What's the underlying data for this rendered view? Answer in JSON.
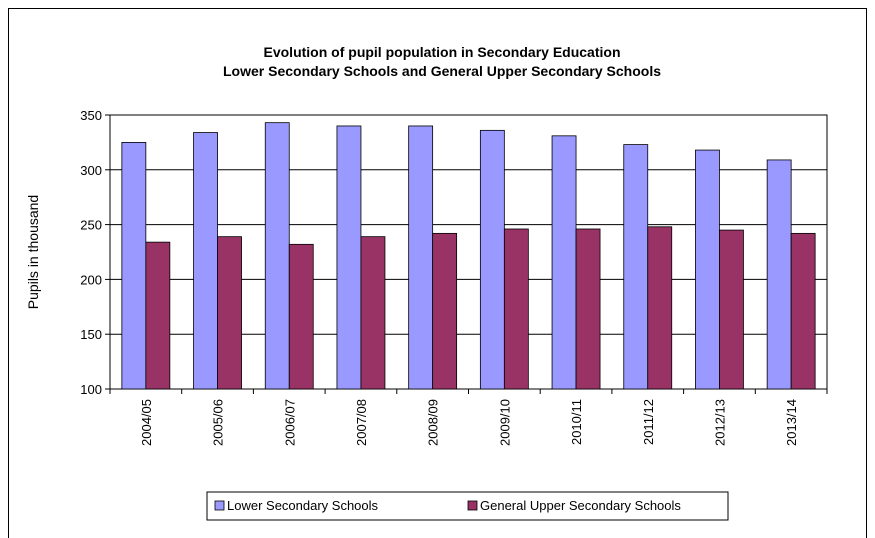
{
  "chart_data": {
    "type": "bar",
    "title_lines": [
      "Evolution of pupil population in Secondary Education",
      "Lower Secondary Schools and General Upper Secondary Schools"
    ],
    "ylabel": "Pupils in thousand",
    "xlabel": "",
    "ylim": [
      100,
      350
    ],
    "yticks": [
      100,
      150,
      200,
      250,
      300,
      350
    ],
    "categories": [
      "2004/05",
      "2005/06",
      "2006/07",
      "2007/08",
      "2008/09",
      "2009/10",
      "2010/11",
      "2011/12",
      "2012/13",
      "2013/14"
    ],
    "series": [
      {
        "name": "Lower Secondary Schools",
        "color": "#9999ff",
        "values": [
          325,
          334,
          343,
          340,
          340,
          336,
          331,
          323,
          318,
          309
        ]
      },
      {
        "name": "General Upper Secondary Schools",
        "color": "#993366",
        "values": [
          234,
          239,
          232,
          239,
          242,
          246,
          246,
          248,
          245,
          242
        ]
      }
    ],
    "grid": true,
    "legend_position": "bottom"
  }
}
